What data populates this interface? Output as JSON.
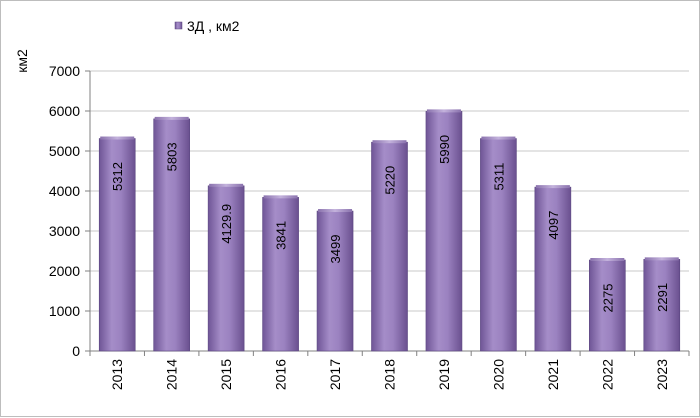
{
  "chart_data": {
    "type": "bar",
    "title": "",
    "xlabel": "",
    "ylabel": "км2",
    "ylim": [
      0,
      7000
    ],
    "yticks": [
      0,
      1000,
      2000,
      3000,
      4000,
      5000,
      6000,
      7000
    ],
    "grid": true,
    "legend_position": "top-left",
    "categories": [
      "2013",
      "2014",
      "2015",
      "2016",
      "2017",
      "2018",
      "2019",
      "2020",
      "2021",
      "2022",
      "2023"
    ],
    "series": [
      {
        "name": "3Д , км2",
        "values": [
          5312,
          5803,
          4129.9,
          3841,
          3499,
          5220,
          5990,
          5311,
          4097,
          2275,
          2291
        ],
        "labels": [
          "5312",
          "5803",
          "4129.9",
          "3841",
          "3499",
          "5220",
          "5990",
          "5311",
          "4097",
          "2275",
          "2291"
        ],
        "color": "#8b6fb0"
      }
    ]
  }
}
